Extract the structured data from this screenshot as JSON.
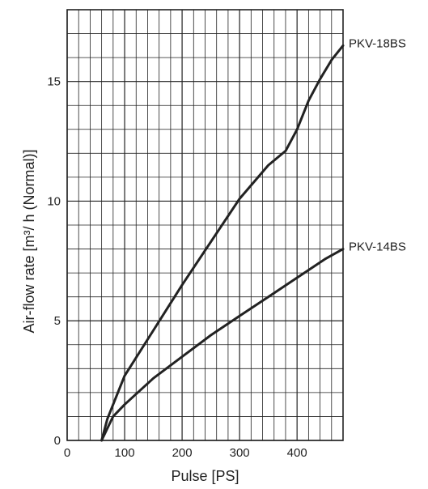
{
  "chart_data": {
    "type": "line",
    "xlabel": "Pulse [PS]",
    "ylabel": "Air-flow rate [m³/ h (Normal)]",
    "xlim": [
      0,
      480
    ],
    "ylim": [
      0,
      18
    ],
    "x_ticks": [
      "0",
      "100",
      "200",
      "300",
      "400"
    ],
    "y_ticks": [
      "0",
      "5",
      "10",
      "15"
    ],
    "grid": true,
    "series": [
      {
        "name": "PKV-18BS",
        "x": [
          60,
          70,
          100,
          150,
          200,
          250,
          300,
          350,
          380,
          400,
          420,
          440,
          460,
          480
        ],
        "y": [
          0,
          0.9,
          2.7,
          4.6,
          6.5,
          8.3,
          10.1,
          11.5,
          12.1,
          13.0,
          14.2,
          15.1,
          15.9,
          16.5
        ]
      },
      {
        "name": "PKV-14BS",
        "x": [
          60,
          80,
          100,
          150,
          200,
          250,
          300,
          350,
          400,
          450,
          480
        ],
        "y": [
          0,
          1.0,
          1.5,
          2.6,
          3.5,
          4.4,
          5.2,
          6.0,
          6.8,
          7.6,
          8.0
        ]
      }
    ]
  }
}
